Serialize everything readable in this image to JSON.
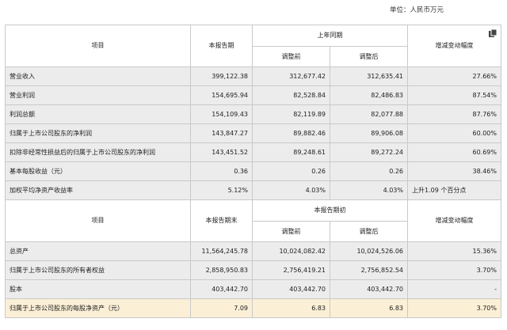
{
  "unit_label": "单位：人民币万元",
  "header1": {
    "item": "项目",
    "current": "本报告期",
    "prior_group": "上年同期",
    "before": "调整前",
    "after": "调整后",
    "change": "增减变动幅度"
  },
  "rows1": [
    {
      "label": "营业收入",
      "current": "399,122.38",
      "before": "312,677.42",
      "after": "312,635.41",
      "change": "27.66%"
    },
    {
      "label": "营业利润",
      "current": "154,695.94",
      "before": "82,528.84",
      "after": "82,486.83",
      "change": "87.54%"
    },
    {
      "label": "利润总额",
      "current": "154,109.43",
      "before": "82,119.89",
      "after": "82,077.88",
      "change": "87.76%"
    },
    {
      "label": "归属于上市公司股东的净利润",
      "current": "143,847.27",
      "before": "89,882.46",
      "after": "89,906.08",
      "change": "60.00%"
    },
    {
      "label": "扣除非经常性损益后的归属于上市公司股东的净利润",
      "current": "143,451.52",
      "before": "89,248.61",
      "after": "89,272.24",
      "change": "60.69%"
    },
    {
      "label": "基本每股收益（元）",
      "current": "0.36",
      "before": "0.26",
      "after": "0.26",
      "change": "38.46%"
    },
    {
      "label": "加权平均净资产收益率",
      "current": "5.12%",
      "before": "4.03%",
      "after": "4.03%",
      "change": "上升1.09 个百分点"
    }
  ],
  "header2": {
    "item": "项目",
    "current": "本报告期末",
    "prior_group": "本报告期初",
    "before": "调整前",
    "after": "调整后",
    "change": "增减变动幅度"
  },
  "rows2": [
    {
      "label": "总资产",
      "current": "11,564,245.78",
      "before": "10,024,082.42",
      "after": "10,024,526.06",
      "change": "15.36%"
    },
    {
      "label": "归属于上市公司股东的所有者权益",
      "current": "2,858,950.83",
      "before": "2,756,419.21",
      "after": "2,756,852.54",
      "change": "3.70%"
    },
    {
      "label": "股本",
      "current": "403,442.70",
      "before": "403,442.70",
      "after": "403,442.70",
      "change": "-"
    },
    {
      "label": "归属于上市公司股东的每股净资产（元）",
      "current": "7.09",
      "before": "6.83",
      "after": "6.83",
      "change": "3.70%"
    }
  ],
  "icons": {
    "copy": "copy-icon"
  }
}
